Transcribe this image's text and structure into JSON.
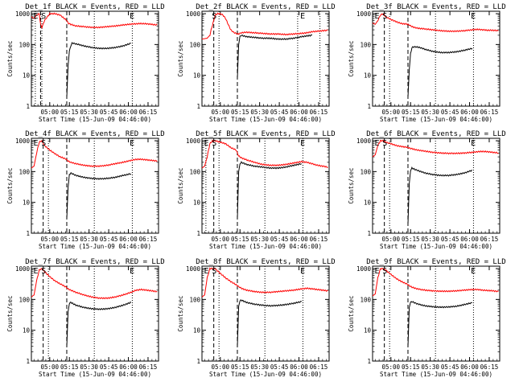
{
  "colors": {
    "events": "#000000",
    "lld": "#ff0000",
    "background": "#ffffff",
    "axes": "#000000"
  },
  "common": {
    "ylabel": "Counts/sec",
    "xlabel": "Start Time (15-Jun-09 04:46:00)",
    "xticks": [
      "05:00",
      "05:15",
      "05:30",
      "05:45",
      "06:00",
      "06:15"
    ],
    "yticks": [
      "1",
      "10",
      "100",
      "1000"
    ],
    "title_suffix": "BLACK = Events, RED = LLD",
    "flag_e": "E",
    "flag_s": "S"
  },
  "chart_data": [
    {
      "type": "line",
      "title": "Det_1f BLACK = Events, RED = LLD",
      "yscale": "log",
      "ylim": [
        1,
        1200
      ],
      "xlim_minutes": [
        0,
        97
      ],
      "markers": {
        "dashed": [
          7,
          27
        ],
        "dotted": [
          3,
          8,
          48,
          77
        ]
      },
      "flags": [
        "E",
        "S",
        "E"
      ],
      "series": [
        {
          "name": "RED = LLD",
          "x": [
            0,
            2,
            4,
            6,
            7,
            8,
            10,
            14,
            18,
            22,
            26,
            27,
            28,
            30,
            34,
            40,
            46,
            52,
            58,
            64,
            70,
            76,
            80,
            84,
            88,
            92,
            96
          ],
          "y": [
            800,
            700,
            900,
            1000,
            450,
            350,
            600,
            1000,
            1000,
            900,
            650,
            600,
            500,
            450,
            400,
            380,
            360,
            360,
            380,
            400,
            430,
            460,
            470,
            480,
            470,
            450,
            430
          ]
        },
        {
          "name": "BLACK = Events",
          "x": [
            27,
            28,
            29,
            30,
            31,
            32,
            36,
            40,
            46,
            52,
            58,
            64,
            70,
            76
          ],
          "y": [
            2,
            20,
            60,
            90,
            110,
            110,
            100,
            90,
            80,
            75,
            75,
            80,
            90,
            110
          ]
        }
      ]
    },
    {
      "type": "line",
      "title": "Det_2f BLACK = Events, RED = LLD",
      "yscale": "log",
      "ylim": [
        1,
        1200
      ],
      "xlim_minutes": [
        0,
        97
      ],
      "markers": {
        "dashed": [
          9,
          27
        ],
        "dotted": [
          13,
          73,
          90
        ]
      },
      "flags": [
        "S",
        "E"
      ],
      "series": [
        {
          "name": "RED = LLD",
          "x": [
            0,
            4,
            6,
            7,
            9,
            10,
            12,
            14,
            16,
            18,
            20,
            22,
            24,
            26,
            27,
            28,
            30,
            34,
            40,
            46,
            52,
            58,
            64,
            70,
            76,
            80,
            84,
            88,
            92,
            96
          ],
          "y": [
            150,
            160,
            200,
            300,
            600,
            900,
            1000,
            1000,
            900,
            700,
            450,
            300,
            250,
            230,
            220,
            220,
            240,
            250,
            240,
            230,
            220,
            220,
            210,
            220,
            230,
            240,
            260,
            270,
            280,
            290
          ]
        },
        {
          "name": "BLACK = Events",
          "x": [
            27,
            28,
            29,
            30,
            34,
            40,
            46,
            52,
            58,
            64,
            70,
            76,
            80,
            84
          ],
          "y": [
            8,
            100,
            180,
            200,
            180,
            170,
            160,
            160,
            150,
            150,
            160,
            180,
            190,
            200
          ]
        }
      ]
    },
    {
      "type": "line",
      "title": "Det_3f BLACK = Events, RED = LLD",
      "yscale": "log",
      "ylim": [
        1,
        1200
      ],
      "xlim_minutes": [
        0,
        97
      ],
      "markers": {
        "dashed": [
          9,
          27
        ],
        "dotted": [
          13,
          48,
          77
        ]
      },
      "flags": [
        "E",
        "S",
        "E"
      ],
      "series": [
        {
          "name": "RED = LLD",
          "x": [
            0,
            2,
            4,
            6,
            8,
            10,
            14,
            18,
            22,
            26,
            27,
            28,
            30,
            34,
            40,
            46,
            52,
            58,
            64,
            70,
            76,
            80,
            84,
            88,
            92,
            96
          ],
          "y": [
            500,
            450,
            600,
            900,
            1000,
            800,
            650,
            550,
            480,
            460,
            450,
            430,
            380,
            340,
            320,
            300,
            280,
            270,
            270,
            280,
            300,
            310,
            300,
            290,
            290,
            280
          ]
        },
        {
          "name": "BLACK = Events",
          "x": [
            27,
            28,
            29,
            30,
            32,
            36,
            40,
            46,
            52,
            58,
            64,
            70,
            76
          ],
          "y": [
            2,
            15,
            50,
            80,
            85,
            80,
            70,
            60,
            55,
            55,
            58,
            65,
            75
          ]
        }
      ]
    },
    {
      "type": "line",
      "title": "Det_4f BLACK = Events, RED = LLD",
      "yscale": "log",
      "ylim": [
        1,
        1200
      ],
      "xlim_minutes": [
        0,
        97
      ],
      "markers": {
        "dashed": [
          9,
          27
        ],
        "dotted": [
          13,
          48,
          77
        ]
      },
      "flags": [
        "E",
        "S",
        "E"
      ],
      "series": [
        {
          "name": "RED = LLD",
          "x": [
            0,
            2,
            4,
            6,
            8,
            10,
            14,
            18,
            22,
            26,
            27,
            28,
            30,
            34,
            40,
            46,
            52,
            58,
            64,
            70,
            76,
            80,
            84,
            88,
            92,
            96
          ],
          "y": [
            130,
            150,
            400,
            900,
            1000,
            700,
            500,
            380,
            300,
            260,
            240,
            220,
            200,
            180,
            160,
            150,
            150,
            160,
            180,
            200,
            230,
            250,
            250,
            240,
            230,
            220
          ]
        },
        {
          "name": "BLACK = Events",
          "x": [
            27,
            28,
            29,
            30,
            34,
            40,
            46,
            52,
            58,
            64,
            70,
            76
          ],
          "y": [
            3,
            30,
            80,
            90,
            75,
            65,
            60,
            58,
            60,
            65,
            75,
            85
          ]
        }
      ]
    },
    {
      "type": "line",
      "title": "Det_5f BLACK = Events, RED = LLD",
      "yscale": "log",
      "ylim": [
        1,
        1200
      ],
      "xlim_minutes": [
        0,
        97
      ],
      "markers": {
        "dashed": [
          9,
          27
        ],
        "dotted": [
          3,
          13,
          48,
          77
        ]
      },
      "flags": [
        "E",
        "S",
        "E"
      ],
      "series": [
        {
          "name": "RED = LLD",
          "x": [
            0,
            2,
            4,
            6,
            8,
            10,
            14,
            18,
            22,
            26,
            27,
            28,
            30,
            34,
            40,
            46,
            52,
            58,
            64,
            70,
            76,
            80,
            84,
            88,
            92,
            96
          ],
          "y": [
            130,
            150,
            300,
            800,
            1000,
            1000,
            900,
            800,
            600,
            500,
            400,
            320,
            280,
            240,
            200,
            170,
            160,
            160,
            170,
            190,
            210,
            200,
            180,
            160,
            150,
            140
          ]
        },
        {
          "name": "BLACK = Events",
          "x": [
            27,
            28,
            29,
            30,
            34,
            40,
            46,
            52,
            58,
            64,
            70,
            76
          ],
          "y": [
            3,
            100,
            180,
            200,
            170,
            150,
            140,
            130,
            130,
            140,
            160,
            180
          ]
        }
      ]
    },
    {
      "type": "line",
      "title": "Det_6f BLACK = Events, RED = LLD",
      "yscale": "log",
      "ylim": [
        1,
        1200
      ],
      "xlim_minutes": [
        0,
        97
      ],
      "markers": {
        "dashed": [
          9,
          27
        ],
        "dotted": [
          13,
          48,
          77
        ]
      },
      "flags": [
        "E",
        "S",
        "E"
      ],
      "series": [
        {
          "name": "RED = LLD",
          "x": [
            0,
            2,
            4,
            6,
            8,
            10,
            14,
            18,
            22,
            26,
            27,
            28,
            30,
            34,
            40,
            46,
            52,
            58,
            64,
            70,
            76,
            80,
            84,
            88,
            92,
            96
          ],
          "y": [
            300,
            350,
            700,
            1000,
            1000,
            900,
            800,
            700,
            650,
            620,
            600,
            580,
            550,
            500,
            460,
            420,
            400,
            390,
            390,
            400,
            420,
            440,
            450,
            440,
            420,
            400
          ]
        },
        {
          "name": "BLACK = Events",
          "x": [
            27,
            28,
            29,
            30,
            34,
            40,
            46,
            52,
            58,
            64,
            70,
            76
          ],
          "y": [
            2,
            40,
            110,
            130,
            110,
            90,
            80,
            75,
            75,
            80,
            90,
            110
          ]
        }
      ]
    },
    {
      "type": "line",
      "title": "Det_7f BLACK = Events, RED = LLD",
      "yscale": "log",
      "ylim": [
        1,
        1200
      ],
      "xlim_minutes": [
        0,
        97
      ],
      "markers": {
        "dashed": [
          9,
          27
        ],
        "dotted": [
          13,
          48,
          77
        ]
      },
      "flags": [
        "E",
        "S",
        "E"
      ],
      "series": [
        {
          "name": "RED = LLD",
          "x": [
            0,
            2,
            4,
            6,
            8,
            10,
            14,
            18,
            22,
            26,
            27,
            28,
            30,
            34,
            40,
            46,
            52,
            58,
            64,
            70,
            76,
            80,
            84,
            88,
            92,
            96
          ],
          "y": [
            120,
            140,
            400,
            900,
            1000,
            800,
            550,
            400,
            320,
            260,
            240,
            220,
            200,
            170,
            140,
            120,
            110,
            110,
            120,
            140,
            170,
            200,
            210,
            200,
            190,
            180
          ]
        },
        {
          "name": "BLACK = Events",
          "x": [
            27,
            28,
            29,
            30,
            34,
            40,
            46,
            52,
            58,
            64,
            70,
            76
          ],
          "y": [
            3,
            40,
            75,
            80,
            65,
            55,
            50,
            48,
            50,
            55,
            65,
            80
          ]
        }
      ]
    },
    {
      "type": "line",
      "title": "Det_8f BLACK = Events, RED = LLD",
      "yscale": "log",
      "ylim": [
        1,
        1200
      ],
      "xlim_minutes": [
        0,
        97
      ],
      "markers": {
        "dashed": [
          9,
          27
        ],
        "dotted": [
          13,
          48,
          77
        ]
      },
      "flags": [
        "E",
        "S",
        "E"
      ],
      "series": [
        {
          "name": "RED = LLD",
          "x": [
            0,
            2,
            4,
            6,
            8,
            10,
            14,
            18,
            22,
            26,
            27,
            28,
            30,
            34,
            40,
            46,
            52,
            58,
            64,
            70,
            76,
            80,
            84,
            88,
            92,
            96
          ],
          "y": [
            120,
            140,
            500,
            1000,
            1000,
            1000,
            700,
            500,
            380,
            300,
            280,
            260,
            230,
            200,
            180,
            170,
            170,
            180,
            190,
            200,
            220,
            230,
            220,
            210,
            200,
            190
          ]
        },
        {
          "name": "BLACK = Events",
          "x": [
            27,
            28,
            29,
            30,
            34,
            40,
            46,
            52,
            58,
            64,
            70,
            76
          ],
          "y": [
            3,
            60,
            90,
            95,
            80,
            70,
            65,
            62,
            64,
            68,
            75,
            85
          ]
        }
      ]
    },
    {
      "type": "line",
      "title": "Det_9f BLACK = Events, RED = LLD",
      "yscale": "log",
      "ylim": [
        1,
        1200
      ],
      "xlim_minutes": [
        0,
        97
      ],
      "markers": {
        "dashed": [
          9,
          27
        ],
        "dotted": [
          13,
          48,
          77
        ]
      },
      "flags": [
        "E",
        "S",
        "E"
      ],
      "series": [
        {
          "name": "RED = LLD",
          "x": [
            0,
            2,
            4,
            6,
            8,
            10,
            14,
            18,
            22,
            26,
            27,
            28,
            30,
            34,
            40,
            46,
            52,
            58,
            64,
            70,
            76,
            80,
            84,
            88,
            92,
            96
          ],
          "y": [
            130,
            150,
            500,
            1000,
            1000,
            900,
            650,
            480,
            380,
            320,
            300,
            280,
            250,
            220,
            200,
            190,
            185,
            185,
            190,
            200,
            210,
            210,
            200,
            195,
            190,
            180
          ]
        },
        {
          "name": "BLACK = Events",
          "x": [
            27,
            28,
            29,
            30,
            34,
            40,
            46,
            52,
            58,
            64,
            70,
            76
          ],
          "y": [
            3,
            55,
            80,
            85,
            72,
            62,
            58,
            56,
            57,
            60,
            68,
            78
          ]
        }
      ]
    }
  ]
}
